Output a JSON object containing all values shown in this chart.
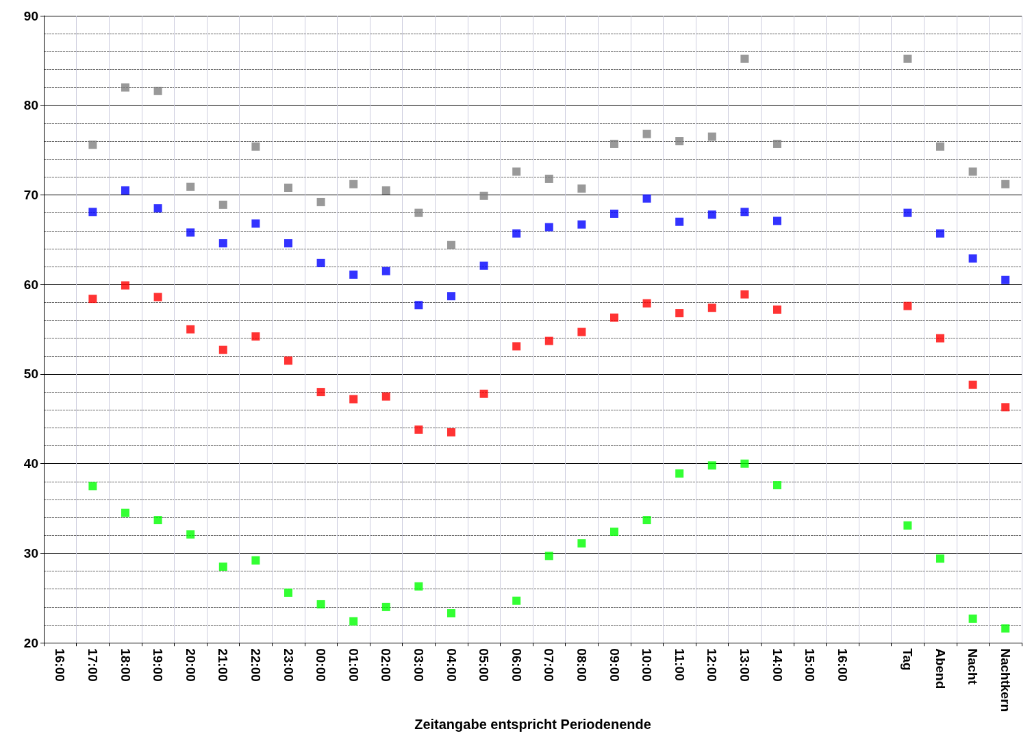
{
  "chart_data": {
    "type": "scatter",
    "xlabel": "Zeitangabe entspricht Periodenende",
    "categories": [
      "16:00",
      "17:00",
      "18:00",
      "19:00",
      "20:00",
      "21:00",
      "22:00",
      "23:00",
      "00:00",
      "01:00",
      "02:00",
      "03:00",
      "04:00",
      "05:00",
      "06:00",
      "07:00",
      "08:00",
      "09:00",
      "10:00",
      "11:00",
      "12:00",
      "13:00",
      "14:00",
      "15:00",
      "16:00",
      null,
      "Tag",
      "Abend",
      "Nacht",
      "Nachtkern"
    ],
    "series": [
      {
        "color": "#808080",
        "values": [
          null,
          75.6,
          82.0,
          81.6,
          70.9,
          68.9,
          75.4,
          70.8,
          69.2,
          71.2,
          70.5,
          68.0,
          64.4,
          69.9,
          72.6,
          71.8,
          70.7,
          75.7,
          76.8,
          76.0,
          76.5,
          85.2,
          75.7,
          null,
          null,
          null,
          85.2,
          75.4,
          72.6,
          71.2
        ]
      },
      {
        "color": "#0000ff",
        "values": [
          null,
          68.1,
          70.5,
          68.5,
          65.8,
          64.6,
          66.8,
          64.6,
          62.4,
          61.1,
          61.5,
          57.7,
          58.7,
          62.1,
          65.7,
          66.4,
          66.7,
          67.9,
          69.6,
          67.0,
          67.8,
          68.1,
          67.1,
          null,
          null,
          null,
          68.0,
          65.7,
          62.9,
          60.5
        ]
      },
      {
        "color": "#ff0000",
        "values": [
          null,
          58.4,
          59.9,
          58.6,
          55.0,
          52.7,
          54.2,
          51.5,
          48.0,
          47.2,
          47.5,
          43.8,
          43.5,
          47.8,
          53.1,
          53.7,
          54.7,
          56.3,
          57.9,
          56.8,
          57.4,
          58.9,
          57.2,
          null,
          null,
          null,
          57.6,
          54.0,
          48.8,
          46.3
        ]
      },
      {
        "color": "#00ff00",
        "values": [
          null,
          37.5,
          34.5,
          33.7,
          32.1,
          28.5,
          29.2,
          25.6,
          24.3,
          22.4,
          24.0,
          26.3,
          23.3,
          null,
          24.7,
          29.7,
          31.1,
          32.4,
          33.7,
          38.9,
          39.8,
          40.0,
          37.6,
          null,
          null,
          null,
          33.1,
          29.4,
          22.7,
          21.6
        ]
      }
    ],
    "ylim": [
      20,
      90
    ],
    "yticks": [
      20,
      30,
      40,
      50,
      60,
      70,
      80,
      90
    ],
    "grid": true,
    "marker": "square"
  }
}
